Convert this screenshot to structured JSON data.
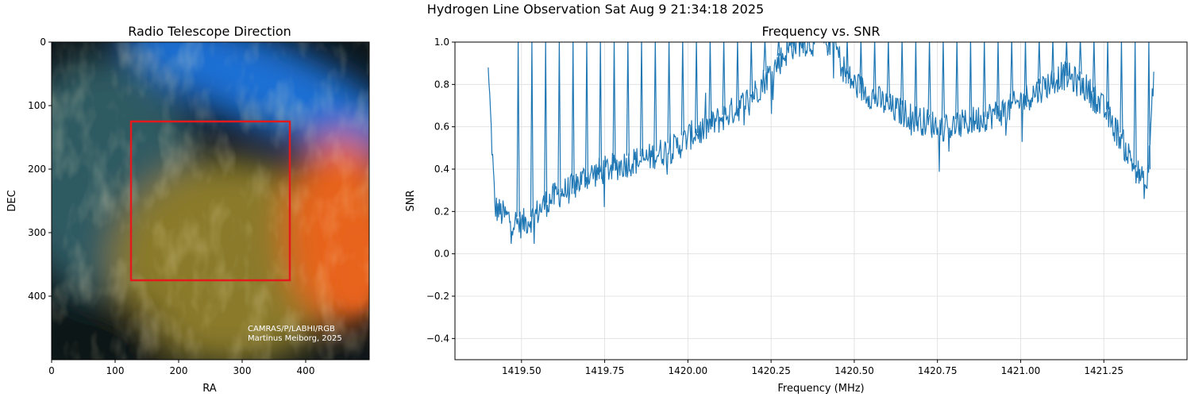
{
  "figure": {
    "suptitle": "Hydrogen Line Observation Sat Aug 9 21:34:18 2025"
  },
  "colors": {
    "line": "#1f77b4",
    "box": "#e31a1c",
    "grid": "#dddddd",
    "sky_blue": "#1e6fd4",
    "sky_orange": "#e8641a",
    "sky_gold": "#8a7a2c",
    "sky_teal": "#2e5a62",
    "sky_dark": "#0d1519"
  },
  "chart_data": [
    {
      "type": "image",
      "title": "Radio Telescope Direction",
      "xlabel": "RA",
      "ylabel": "DEC",
      "xlim": [
        0,
        500
      ],
      "ylim": [
        500,
        0
      ],
      "xticks": [
        0,
        100,
        200,
        300,
        400
      ],
      "yticks": [
        0,
        100,
        200,
        300,
        400
      ],
      "grid": false,
      "pointing_box": {
        "x0": 125,
        "y0": 125,
        "x1": 375,
        "y1": 375
      },
      "credit": [
        "CAMRAS/P/LABHI/RGB",
        "Martinus Meiborg, 2025"
      ]
    },
    {
      "type": "line",
      "title": "Frequency vs. SNR",
      "xlabel": "Frequency (MHz)",
      "ylabel": "SNR",
      "xlim": [
        1419.3,
        1421.5
      ],
      "ylim": [
        -0.5,
        1.0
      ],
      "xticks": [
        "1419.50",
        "1419.75",
        "1420.00",
        "1420.25",
        "1420.50",
        "1420.75",
        "1421.00",
        "1421.25"
      ],
      "yticks": [
        "−0.4",
        "−0.2",
        "0.0",
        "0.2",
        "0.4",
        "0.6",
        "0.8",
        "1.0"
      ],
      "grid": true,
      "series": [
        {
          "x": [
            1419.4,
            1419.42,
            1419.44,
            1419.46,
            1419.48,
            1419.5,
            1419.52,
            1419.54,
            1419.56,
            1419.58,
            1419.6,
            1419.62,
            1419.64,
            1419.66,
            1419.68,
            1419.7,
            1419.72,
            1419.74,
            1419.76,
            1419.78,
            1419.8,
            1419.82,
            1419.84,
            1419.86,
            1419.88,
            1419.9,
            1419.92,
            1419.94,
            1419.96,
            1419.98,
            1420.0,
            1420.02,
            1420.04,
            1420.06,
            1420.08,
            1420.1,
            1420.12,
            1420.14,
            1420.16,
            1420.18,
            1420.2,
            1420.22,
            1420.24,
            1420.26,
            1420.28,
            1420.3,
            1420.32,
            1420.34,
            1420.36,
            1420.38,
            1420.4,
            1420.42,
            1420.44,
            1420.46,
            1420.48,
            1420.5,
            1420.52,
            1420.54,
            1420.56,
            1420.58,
            1420.6,
            1420.62,
            1420.64,
            1420.66,
            1420.68,
            1420.7,
            1420.72,
            1420.74,
            1420.76,
            1420.78,
            1420.8,
            1420.82,
            1420.84,
            1420.86,
            1420.88,
            1420.9,
            1420.92,
            1420.94,
            1420.96,
            1420.98,
            1421.0,
            1421.02,
            1421.04,
            1421.06,
            1421.08,
            1421.1,
            1421.12,
            1421.14,
            1421.16,
            1421.18,
            1421.2,
            1421.22,
            1421.24,
            1421.26,
            1421.28,
            1421.3,
            1421.32,
            1421.34,
            1421.36,
            1421.38,
            1421.4
          ],
          "y": [
            0.88,
            0.22,
            0.19,
            0.17,
            0.15,
            0.14,
            0.16,
            0.18,
            0.22,
            0.25,
            0.27,
            0.29,
            0.3,
            0.32,
            0.35,
            0.37,
            0.38,
            0.39,
            0.4,
            0.41,
            0.42,
            0.43,
            0.44,
            0.44,
            0.45,
            0.47,
            0.48,
            0.49,
            0.5,
            0.52,
            0.55,
            0.57,
            0.58,
            0.6,
            0.62,
            0.64,
            0.66,
            0.68,
            0.7,
            0.73,
            0.76,
            0.8,
            0.84,
            0.88,
            0.92,
            0.96,
            0.99,
            1.0,
            1.0,
            1.0,
            1.0,
            1.0,
            1.0,
            0.9,
            0.84,
            0.8,
            0.78,
            0.76,
            0.74,
            0.72,
            0.7,
            0.68,
            0.67,
            0.66,
            0.64,
            0.63,
            0.62,
            0.61,
            0.6,
            0.6,
            0.6,
            0.61,
            0.62,
            0.63,
            0.64,
            0.65,
            0.66,
            0.67,
            0.68,
            0.7,
            0.72,
            0.74,
            0.76,
            0.78,
            0.8,
            0.82,
            0.84,
            0.84,
            0.82,
            0.8,
            0.78,
            0.74,
            0.7,
            0.66,
            0.6,
            0.55,
            0.48,
            0.42,
            0.36,
            0.3,
            0.86
          ]
        }
      ]
    }
  ]
}
